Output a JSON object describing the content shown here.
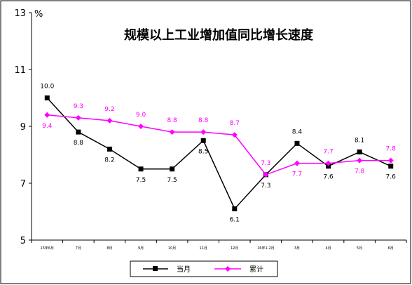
{
  "chart_data": {
    "type": "line",
    "title": "规模以上工业增加值同比增长速度",
    "ylabel": "%",
    "xlabel": "",
    "ylim": [
      5,
      13
    ],
    "yticks": [
      "5",
      "7",
      "9",
      "11",
      "13"
    ],
    "grid": false,
    "legend": "bottom",
    "categories": [
      "15年6月",
      "7月",
      "8月",
      "9月",
      "10月",
      "11月",
      "12月",
      "16年1-2月",
      "3月",
      "4月",
      "5月",
      "6月"
    ],
    "series": [
      {
        "name": "当月",
        "color": "#000000",
        "marker": "square",
        "values": [
          10.0,
          8.8,
          8.2,
          7.5,
          7.5,
          8.5,
          6.1,
          7.3,
          8.4,
          7.6,
          8.1,
          7.6
        ],
        "labels": [
          "10.0",
          "8.8",
          "8.2",
          "7.5",
          "7.5",
          "8.5",
          "6.1",
          "7.3",
          "8.4",
          "7.6",
          "8.1",
          "7.6"
        ]
      },
      {
        "name": "累计",
        "color": "#ff00ff",
        "marker": "diamond",
        "values": [
          9.4,
          9.3,
          9.2,
          9.0,
          8.8,
          8.8,
          8.7,
          7.3,
          7.7,
          7.7,
          7.8,
          7.8
        ],
        "labels": [
          "9.4",
          "9.3",
          "9.2",
          "9.0",
          "8.8",
          "8.8",
          "8.7",
          "7.3",
          "7.7",
          "7.7",
          "7.8",
          "7.8"
        ]
      }
    ]
  }
}
